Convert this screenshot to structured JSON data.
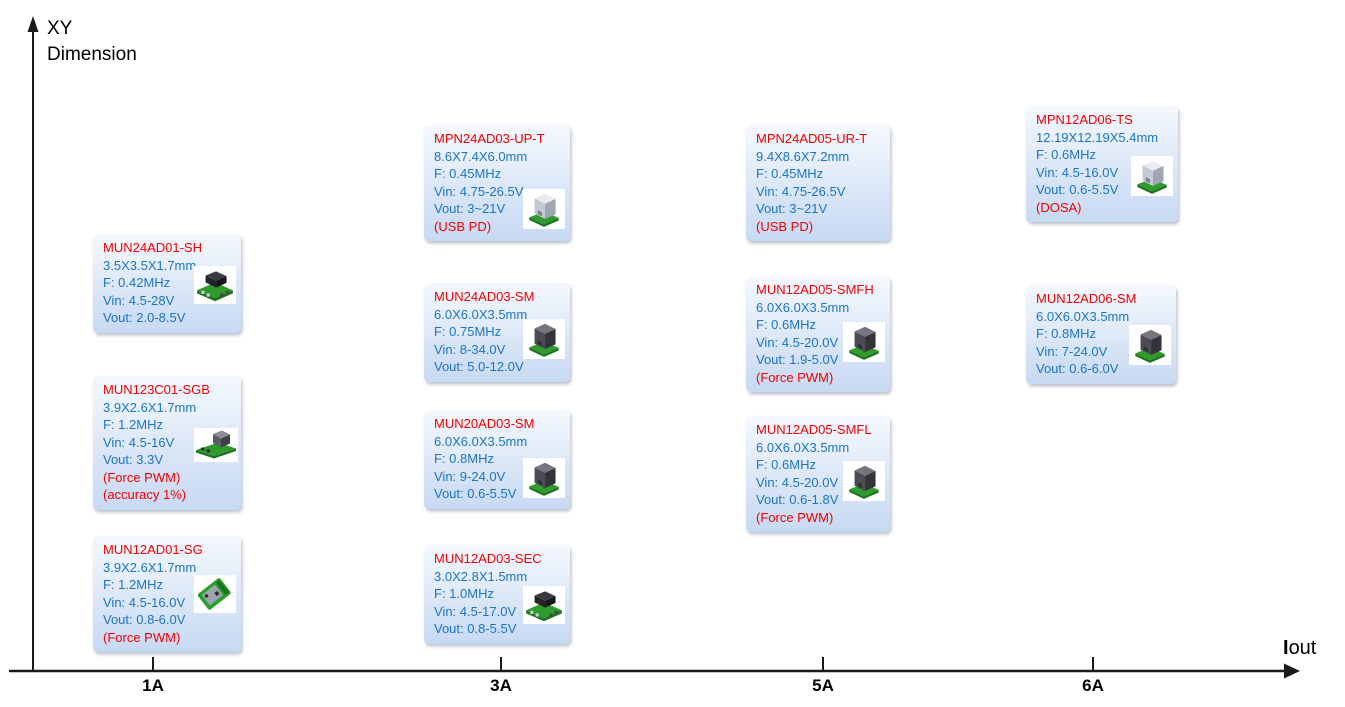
{
  "y_axis": {
    "line1": "XY",
    "line2": "Dimension"
  },
  "x_axis": {
    "label_bold": "I",
    "label_rest": "out",
    "ticks": [
      "1A",
      "3A",
      "5A",
      "6A"
    ]
  },
  "colors": {
    "card_title_red": "#f40000",
    "card_spec_blue": "#1b75c4",
    "card_note_red": "#f40000",
    "card_bg_top": "#f5f9fe",
    "card_bg_bottom": "#c7d9f3",
    "axis_black": "#1a1a1a",
    "pcb_green": "#2f9b2b"
  },
  "cards": [
    {
      "title": "MUN24AD01-SH",
      "size": "3.5X3.5X1.7mm",
      "freq": "F: 0.42MHz",
      "vin": "Vin: 4.5-28V",
      "vout": "Vout: 2.0-8.5V",
      "notes": [],
      "column": "1A",
      "image": "black-chip-on-green-pcb"
    },
    {
      "title": "MUN123C01-SGB",
      "size": "3.9X2.6X1.7mm",
      "freq": "F: 1.2MHz",
      "vin": "Vin: 4.5-16V",
      "vout": "Vout: 3.3V",
      "notes": [
        "(Force PWM)",
        "(accuracy 1%)"
      ],
      "column": "1A",
      "image": "gray-module-on-long-pcb"
    },
    {
      "title": "MUN12AD01-SG",
      "size": "3.9X2.6X1.7mm",
      "freq": "F: 1.2MHz",
      "vin": "Vin: 4.5-16.0V",
      "vout": "Vout: 0.8-6.0V",
      "notes": [
        "(Force PWM)"
      ],
      "column": "1A",
      "image": "tilted-green-pcb"
    },
    {
      "title": "MPN24AD03-UP-T",
      "size": "8.6X7.4X6.0mm",
      "freq": "F: 0.45MHz",
      "vin": "Vin: 4.75-26.5V",
      "vout": "Vout: 3~21V",
      "notes": [
        "(USB PD)"
      ],
      "column": "3A",
      "image": "light-gray-module-on-green-pcb"
    },
    {
      "title": "MUN24AD03-SM",
      "size": "6.0X6.0X3.5mm",
      "freq": "F: 0.75MHz",
      "vin": "Vin: 8-34.0V",
      "vout": "Vout: 5.0-12.0V",
      "notes": [],
      "column": "3A",
      "image": "dark-gray-cube-on-green-pcb"
    },
    {
      "title": "MUN20AD03-SM",
      "size": "6.0X6.0X3.5mm",
      "freq": "F: 0.8MHz",
      "vin": "Vin: 9-24.0V",
      "vout": "Vout: 0.6-5.5V",
      "notes": [],
      "column": "3A",
      "image": "dark-gray-cube-on-green-pcb"
    },
    {
      "title": "MUN12AD03-SEC",
      "size": "3.0X2.8X1.5mm",
      "freq": "F: 1.0MHz",
      "vin": "Vin: 4.5-17.0V",
      "vout": "Vout: 0.8-5.5V",
      "notes": [],
      "column": "3A",
      "image": "black-chip-on-green-pcb"
    },
    {
      "title": "MPN24AD05-UR-T",
      "size": "9.4X8.6X7.2mm",
      "freq": "F: 0.45MHz",
      "vin": "Vin: 4.75-26.5V",
      "vout": "Vout: 3~21V",
      "notes": [
        "(USB PD)"
      ],
      "column": "5A",
      "image": null
    },
    {
      "title": "MUN12AD05-SMFH",
      "size": "6.0X6.0X3.5mm",
      "freq": "F: 0.6MHz",
      "vin": "Vin: 4.5-20.0V",
      "vout": "Vout: 1.9-5.0V",
      "notes": [
        "(Force PWM)"
      ],
      "column": "5A",
      "image": "dark-gray-cube-on-green-pcb"
    },
    {
      "title": "MUN12AD05-SMFL",
      "size": "6.0X6.0X3.5mm",
      "freq": "F: 0.6MHz",
      "vin": "Vin: 4.5-20.0V",
      "vout": "Vout: 0.6-1.8V",
      "notes": [
        "(Force PWM)"
      ],
      "column": "5A",
      "image": "dark-gray-cube-on-green-pcb"
    },
    {
      "title": "MPN12AD06-TS",
      "size": "12.19X12.19X5.4mm",
      "freq": "F: 0.6MHz",
      "vin": "Vin: 4.5-16.0V",
      "vout": "Vout: 0.6-5.5V",
      "notes": [
        "(DOSA)"
      ],
      "column": "6A",
      "image": "light-gray-module-on-green-pcb"
    },
    {
      "title": "MUN12AD06-SM",
      "size": "6.0X6.0X3.5mm",
      "freq": "F: 0.8MHz",
      "vin": "Vin: 7-24.0V",
      "vout": "Vout: 0.6-6.0V",
      "notes": [],
      "column": "6A",
      "image": "dark-gray-cube-on-green-pcb"
    }
  ]
}
